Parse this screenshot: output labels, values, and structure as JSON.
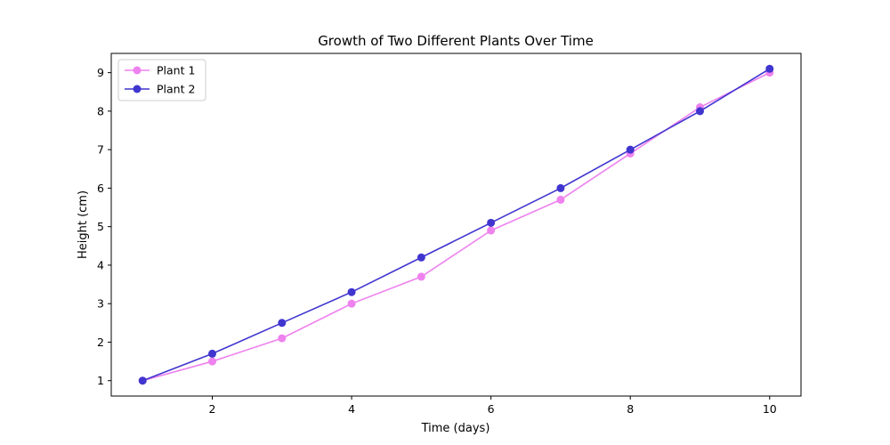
{
  "chart_data": {
    "type": "line",
    "title": "Growth of Two Different Plants Over Time",
    "xlabel": "Time (days)",
    "ylabel": "Height (cm)",
    "x": [
      1,
      2,
      3,
      4,
      5,
      6,
      7,
      8,
      9,
      10
    ],
    "xlim": [
      0.55,
      10.45
    ],
    "ylim": [
      0.6,
      9.5
    ],
    "xticks": [
      2,
      4,
      6,
      8,
      10
    ],
    "yticks": [
      1,
      2,
      3,
      4,
      5,
      6,
      7,
      8,
      9
    ],
    "grid": false,
    "legend_position": "top-left",
    "series": [
      {
        "name": "Plant 1",
        "color": "#ee82ee",
        "marker": "circle",
        "values": [
          1.0,
          1.5,
          2.1,
          3.0,
          3.7,
          4.9,
          5.7,
          6.9,
          8.1,
          9.0
        ]
      },
      {
        "name": "Plant 2",
        "color": "#4035cf",
        "marker": "circle",
        "values": [
          1.0,
          1.7,
          2.5,
          3.3,
          4.2,
          5.1,
          6.0,
          7.0,
          8.0,
          9.1
        ]
      }
    ]
  }
}
